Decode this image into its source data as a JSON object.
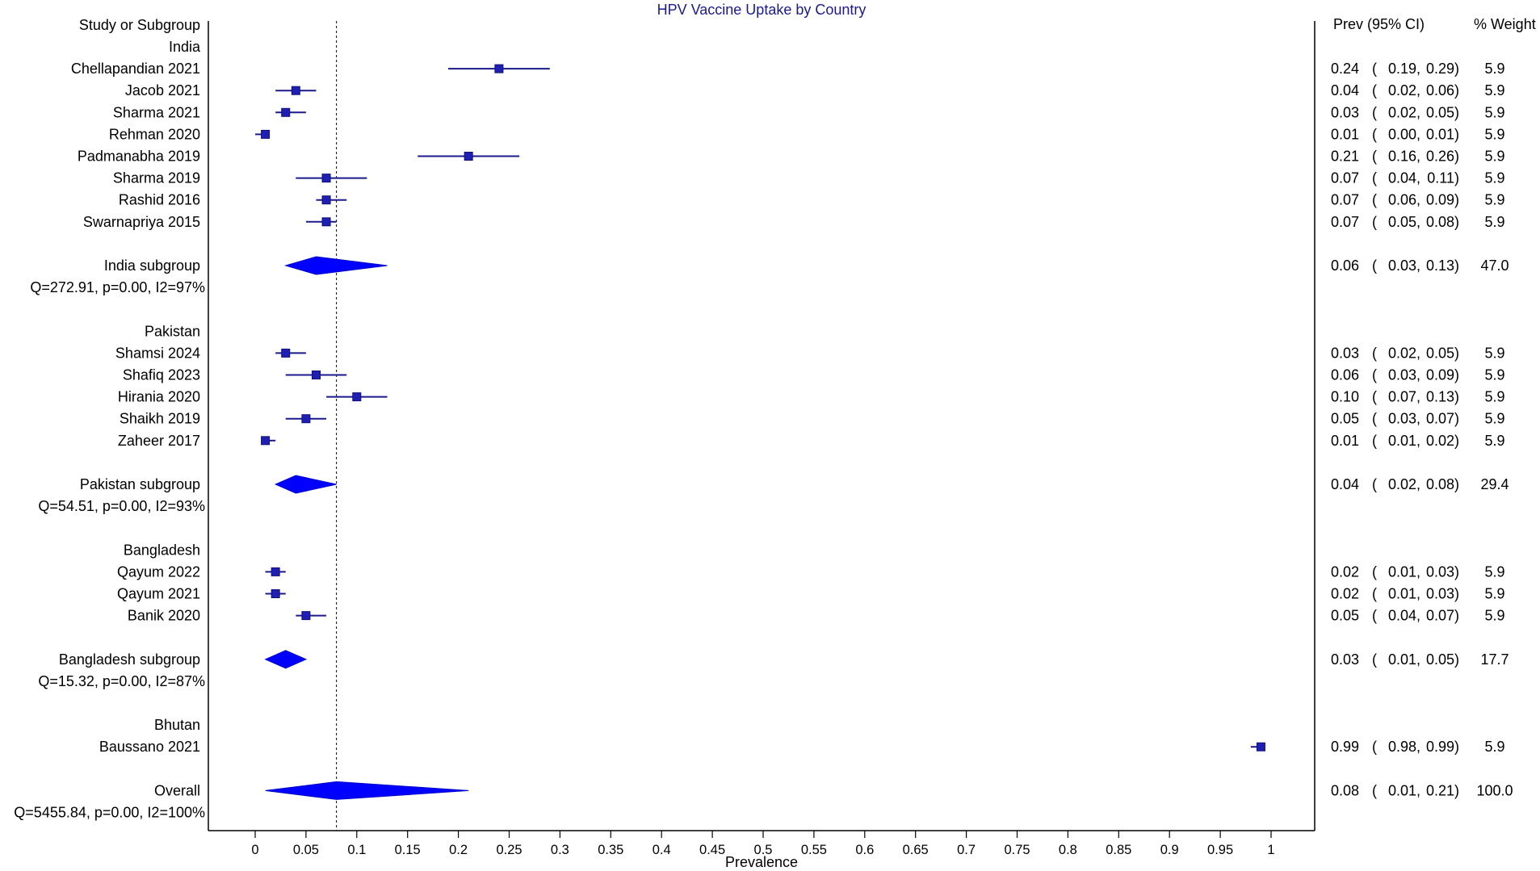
{
  "chart_data": {
    "type": "forest",
    "title": "HPV Vaccine Uptake by Country",
    "xlabel": "Prevalence",
    "xlim": [
      0,
      1
    ],
    "xticks": [
      "0",
      "0.05",
      "0.1",
      "0.15",
      "0.2",
      "0.25",
      "0.3",
      "0.35",
      "0.4",
      "0.45",
      "0.5",
      "0.55",
      "0.6",
      "0.65",
      "0.7",
      "0.75",
      "0.8",
      "0.85",
      "0.9",
      "0.95",
      "1"
    ],
    "reference_line": 0.08,
    "headers": {
      "study": "Study or Subgroup",
      "ci": "Prev (95% CI)",
      "weight": "% Weight"
    },
    "colors": {
      "marker": "#1f1fb4",
      "diamond": "#0000ff",
      "line": "#1a1a8c",
      "title": "#1a1a8c"
    },
    "rows": [
      {
        "type": "group",
        "label": "India"
      },
      {
        "type": "study",
        "label": "Chellapandian 2021",
        "est": 0.24,
        "lo": 0.19,
        "hi": 0.29,
        "est_text": "0.24",
        "lo_text": "0.19",
        "hi_text": "0.29",
        "weight": "5.9"
      },
      {
        "type": "study",
        "label": "Jacob 2021",
        "est": 0.04,
        "lo": 0.02,
        "hi": 0.06,
        "est_text": "0.04",
        "lo_text": "0.02",
        "hi_text": "0.06",
        "weight": "5.9"
      },
      {
        "type": "study",
        "label": "Sharma 2021",
        "est": 0.03,
        "lo": 0.02,
        "hi": 0.05,
        "est_text": "0.03",
        "lo_text": "0.02",
        "hi_text": "0.05",
        "weight": "5.9"
      },
      {
        "type": "study",
        "label": "Rehman 2020",
        "est": 0.01,
        "lo": 0.0,
        "hi": 0.01,
        "est_text": "0.01",
        "lo_text": "0.00",
        "hi_text": "0.01",
        "weight": "5.9"
      },
      {
        "type": "study",
        "label": "Padmanabha 2019",
        "est": 0.21,
        "lo": 0.16,
        "hi": 0.26,
        "est_text": "0.21",
        "lo_text": "0.16",
        "hi_text": "0.26",
        "weight": "5.9"
      },
      {
        "type": "study",
        "label": "Sharma 2019",
        "est": 0.07,
        "lo": 0.04,
        "hi": 0.11,
        "est_text": "0.07",
        "lo_text": "0.04",
        "hi_text": "0.11",
        "weight": "5.9"
      },
      {
        "type": "study",
        "label": "Rashid 2016",
        "est": 0.07,
        "lo": 0.06,
        "hi": 0.09,
        "est_text": "0.07",
        "lo_text": "0.06",
        "hi_text": "0.09",
        "weight": "5.9"
      },
      {
        "type": "study",
        "label": "Swarnapriya 2015",
        "est": 0.07,
        "lo": 0.05,
        "hi": 0.08,
        "est_text": "0.07",
        "lo_text": "0.05",
        "hi_text": "0.08",
        "weight": "5.9"
      },
      {
        "type": "blank"
      },
      {
        "type": "subgroup",
        "label": "India subgroup",
        "est": 0.06,
        "lo": 0.03,
        "hi": 0.13,
        "est_text": "0.06",
        "lo_text": "0.03",
        "hi_text": "0.13",
        "weight": "47.0"
      },
      {
        "type": "het",
        "label": "Q=272.91, p=0.00, I2=97%"
      },
      {
        "type": "blank"
      },
      {
        "type": "group",
        "label": "Pakistan"
      },
      {
        "type": "study",
        "label": "Shamsi 2024",
        "est": 0.03,
        "lo": 0.02,
        "hi": 0.05,
        "est_text": "0.03",
        "lo_text": "0.02",
        "hi_text": "0.05",
        "weight": "5.9"
      },
      {
        "type": "study",
        "label": "Shafiq 2023",
        "est": 0.06,
        "lo": 0.03,
        "hi": 0.09,
        "est_text": "0.06",
        "lo_text": "0.03",
        "hi_text": "0.09",
        "weight": "5.9"
      },
      {
        "type": "study",
        "label": "Hirania 2020",
        "est": 0.1,
        "lo": 0.07,
        "hi": 0.13,
        "est_text": "0.10",
        "lo_text": "0.07",
        "hi_text": "0.13",
        "weight": "5.9"
      },
      {
        "type": "study",
        "label": "Shaikh 2019",
        "est": 0.05,
        "lo": 0.03,
        "hi": 0.07,
        "est_text": "0.05",
        "lo_text": "0.03",
        "hi_text": "0.07",
        "weight": "5.9"
      },
      {
        "type": "study",
        "label": "Zaheer 2017",
        "est": 0.01,
        "lo": 0.01,
        "hi": 0.02,
        "est_text": "0.01",
        "lo_text": "0.01",
        "hi_text": "0.02",
        "weight": "5.9"
      },
      {
        "type": "blank"
      },
      {
        "type": "subgroup",
        "label": "Pakistan subgroup",
        "est": 0.04,
        "lo": 0.02,
        "hi": 0.08,
        "est_text": "0.04",
        "lo_text": "0.02",
        "hi_text": "0.08",
        "weight": "29.4"
      },
      {
        "type": "het",
        "label": "Q=54.51, p=0.00, I2=93%"
      },
      {
        "type": "blank"
      },
      {
        "type": "group",
        "label": "Bangladesh"
      },
      {
        "type": "study",
        "label": "Qayum 2022",
        "est": 0.02,
        "lo": 0.01,
        "hi": 0.03,
        "est_text": "0.02",
        "lo_text": "0.01",
        "hi_text": "0.03",
        "weight": "5.9"
      },
      {
        "type": "study",
        "label": "Qayum 2021",
        "est": 0.02,
        "lo": 0.01,
        "hi": 0.03,
        "est_text": "0.02",
        "lo_text": "0.01",
        "hi_text": "0.03",
        "weight": "5.9"
      },
      {
        "type": "study",
        "label": "Banik 2020",
        "est": 0.05,
        "lo": 0.04,
        "hi": 0.07,
        "est_text": "0.05",
        "lo_text": "0.04",
        "hi_text": "0.07",
        "weight": "5.9"
      },
      {
        "type": "blank"
      },
      {
        "type": "subgroup",
        "label": "Bangladesh subgroup",
        "est": 0.03,
        "lo": 0.01,
        "hi": 0.05,
        "est_text": "0.03",
        "lo_text": "0.01",
        "hi_text": "0.05",
        "weight": "17.7"
      },
      {
        "type": "het",
        "label": "Q=15.32, p=0.00, I2=87%"
      },
      {
        "type": "blank"
      },
      {
        "type": "group",
        "label": "Bhutan"
      },
      {
        "type": "study",
        "label": "Baussano 2021",
        "est": 0.99,
        "lo": 0.98,
        "hi": 0.99,
        "est_text": "0.99",
        "lo_text": "0.98",
        "hi_text": "0.99",
        "weight": "5.9"
      },
      {
        "type": "blank"
      },
      {
        "type": "subgroup",
        "label": "Overall",
        "est": 0.08,
        "lo": 0.01,
        "hi": 0.21,
        "est_text": "0.08",
        "lo_text": "0.01",
        "hi_text": "0.21",
        "weight": "100.0"
      },
      {
        "type": "het",
        "label": "Q=5455.84, p=0.00, I2=100%"
      }
    ]
  }
}
